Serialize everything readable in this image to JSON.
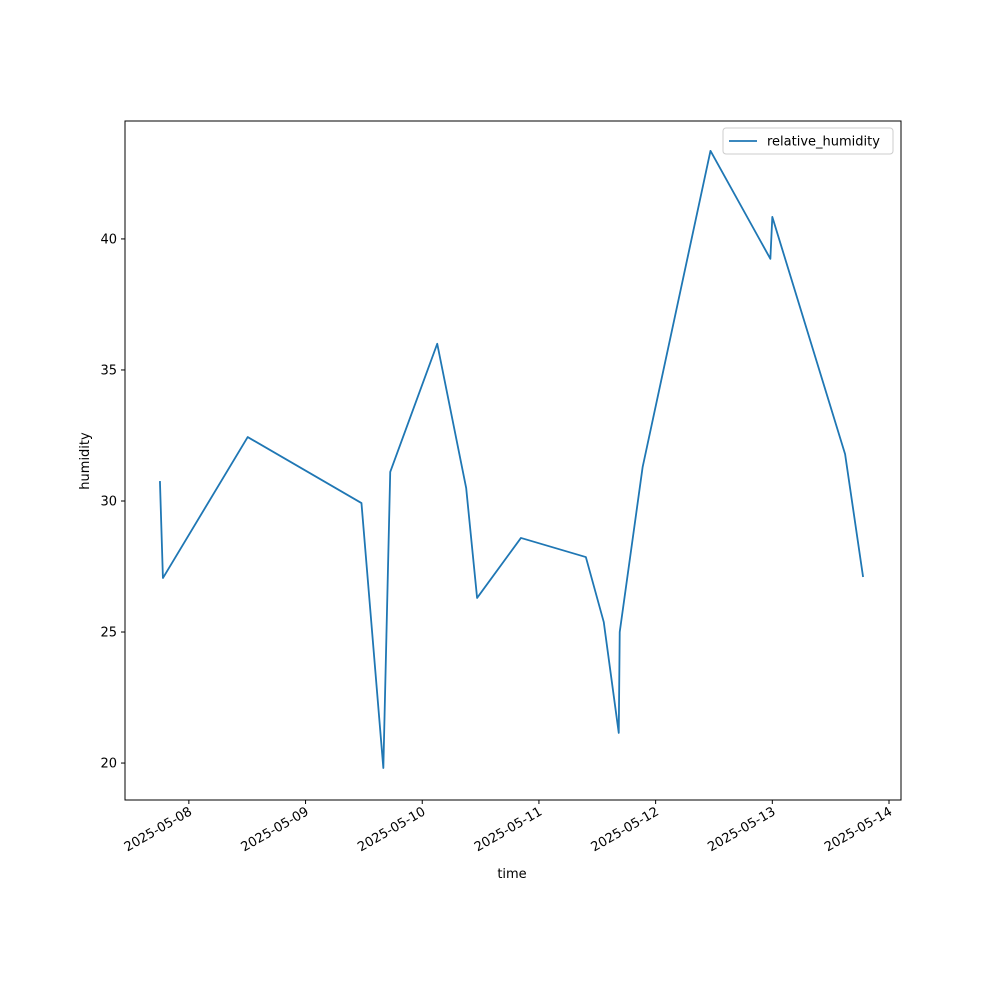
{
  "chart_data": {
    "type": "line",
    "xlabel": "time",
    "ylabel": "humidity",
    "x": [
      "2025-05-07T18:03",
      "2025-05-07T18:40",
      "2025-05-08T12:06",
      "2025-05-09T11:30",
      "2025-05-09T16:00",
      "2025-05-09T17:25",
      "2025-05-10T03:05",
      "2025-05-10T09:02",
      "2025-05-10T11:17",
      "2025-05-10T20:18",
      "2025-05-11T09:39",
      "2025-05-11T13:20",
      "2025-05-11T16:25",
      "2025-05-11T16:37",
      "2025-05-11T21:20",
      "2025-05-12T11:17",
      "2025-05-12T23:36",
      "2025-05-13T00:00",
      "2025-05-13T14:58",
      "2025-05-13T18:40"
    ],
    "series": [
      {
        "name": "relative_humidity",
        "color": "#1f77b4",
        "values": [
          30.76,
          27.06,
          32.44,
          29.92,
          19.81,
          31.11,
          36.0,
          30.5,
          26.3,
          28.59,
          27.86,
          25.38,
          21.15,
          25.0,
          31.3,
          43.36,
          39.24,
          40.84,
          31.79,
          27.1
        ]
      }
    ],
    "xlim": [
      "2025-05-07T10:52",
      "2025-05-14T02:28"
    ],
    "xticks": [
      "2025-05-08",
      "2025-05-09",
      "2025-05-10",
      "2025-05-11",
      "2025-05-12",
      "2025-05-13",
      "2025-05-14"
    ],
    "ylim": [
      18.59,
      44.5
    ],
    "yticks": [
      20,
      25,
      30,
      35,
      40
    ],
    "grid": false,
    "legend": "upper right"
  }
}
